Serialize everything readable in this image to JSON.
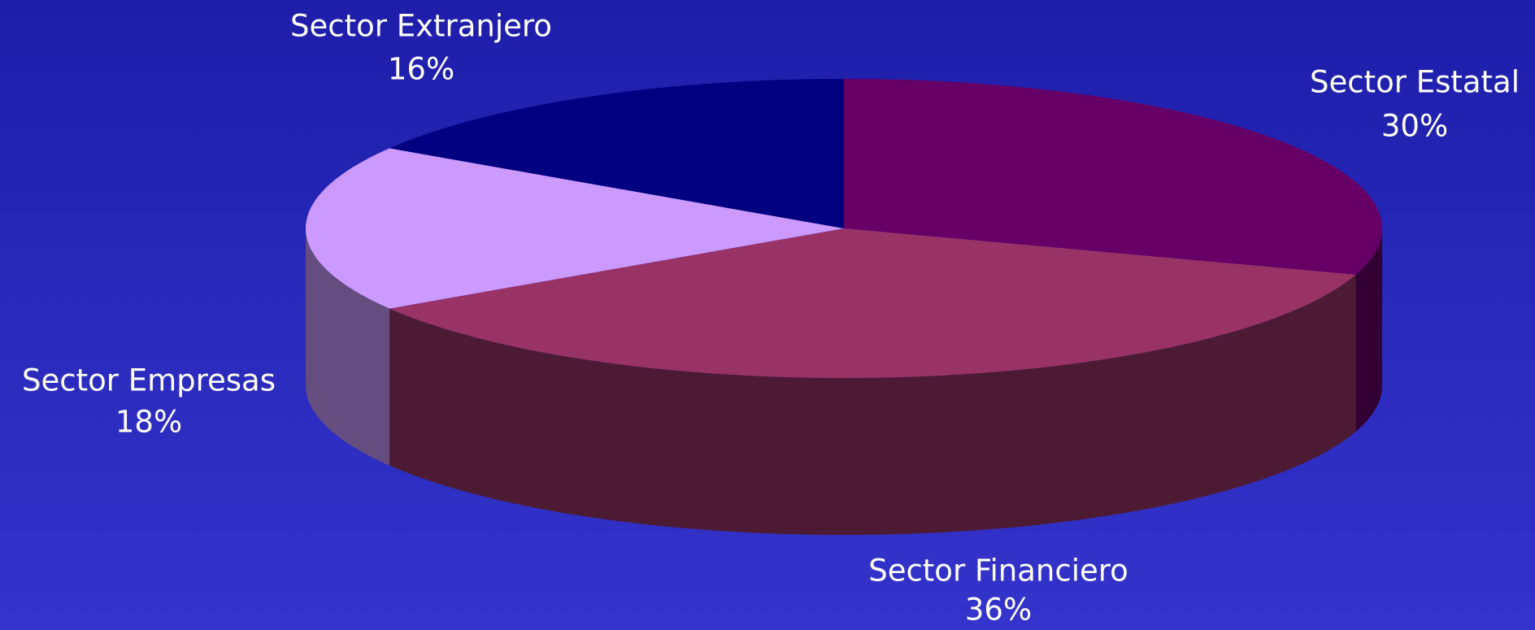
{
  "chart_data": {
    "type": "pie",
    "three_d": true,
    "categories": [
      "Sector Estatal",
      "Sector Financiero",
      "Sector Empresas",
      "Sector Extranjero"
    ],
    "values": [
      30,
      36,
      18,
      16
    ],
    "value_labels": [
      "30%",
      "36%",
      "18%",
      "16%"
    ],
    "colors": [
      "#660066",
      "#993366",
      "#cc99ff",
      "#000080"
    ]
  }
}
